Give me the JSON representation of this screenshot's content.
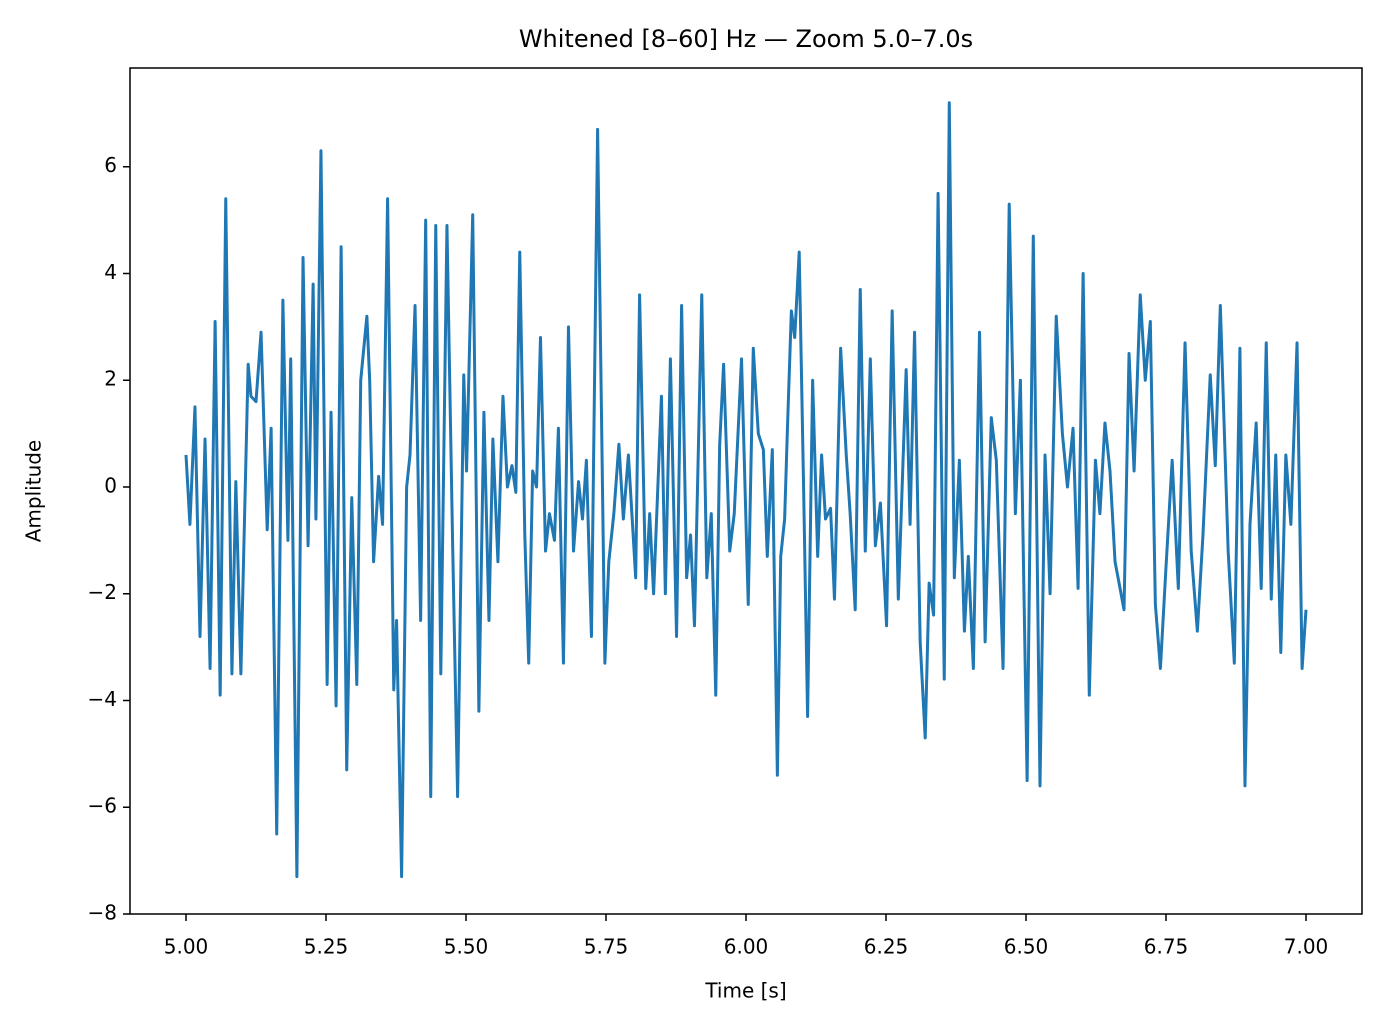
{
  "chart_data": {
    "type": "line",
    "title": "Whitened [8–60] Hz — Zoom 5.0–7.0s",
    "x_label": "Time [s]",
    "y_label": "Amplitude",
    "xlim": [
      4.9,
      7.1
    ],
    "ylim": [
      -8,
      7.85
    ],
    "grid": false,
    "xticks": [
      {
        "value": 5,
        "label": "5.00"
      },
      {
        "value": 5.25,
        "label": "5.25"
      },
      {
        "value": 5.5,
        "label": "5.50"
      },
      {
        "value": 5.75,
        "label": "5.75"
      },
      {
        "value": 6,
        "label": "6.00"
      },
      {
        "value": 6.25,
        "label": "6.25"
      },
      {
        "value": 6.5,
        "label": "6.50"
      },
      {
        "value": 6.75,
        "label": "6.75"
      },
      {
        "value": 7,
        "label": "7.00"
      }
    ],
    "yticks": [
      {
        "value": -8,
        "label": "−8"
      },
      {
        "value": -6,
        "label": "−6"
      },
      {
        "value": -4,
        "label": "−4"
      },
      {
        "value": -2,
        "label": "−2"
      },
      0,
      2,
      4,
      6
    ],
    "x": [
      5.0,
      5.007,
      5.016,
      5.025,
      5.034,
      5.043,
      5.052,
      5.061,
      5.071,
      5.082,
      5.089,
      5.098,
      5.111,
      5.116,
      5.125,
      5.134,
      5.145,
      5.152,
      5.162,
      5.173,
      5.182,
      5.187,
      5.198,
      5.209,
      5.218,
      5.227,
      5.232,
      5.241,
      5.252,
      5.259,
      5.268,
      5.277,
      5.287,
      5.296,
      5.305,
      5.312,
      5.323,
      5.328,
      5.335,
      5.344,
      5.351,
      5.36,
      5.371,
      5.376,
      5.385,
      5.394,
      5.4,
      5.409,
      5.419,
      5.428,
      5.437,
      5.446,
      5.455,
      5.466,
      5.476,
      5.485,
      5.496,
      5.501,
      5.512,
      5.523,
      5.532,
      5.541,
      5.548,
      5.557,
      5.566,
      5.574,
      5.582,
      5.589,
      5.596,
      5.605,
      5.612,
      5.619,
      5.626,
      5.633,
      5.642,
      5.649,
      5.658,
      5.665,
      5.674,
      5.683,
      5.692,
      5.701,
      5.708,
      5.715,
      5.724,
      5.735,
      5.748,
      5.755,
      5.764,
      5.773,
      5.781,
      5.79,
      5.803,
      5.81,
      5.821,
      5.828,
      5.835,
      5.849,
      5.856,
      5.865,
      5.876,
      5.885,
      5.894,
      5.901,
      5.908,
      5.921,
      5.93,
      5.938,
      5.946,
      5.953,
      5.96,
      5.971,
      5.979,
      5.992,
      6.004,
      6.013,
      6.022,
      6.031,
      6.038,
      6.047,
      6.056,
      6.062,
      6.069,
      6.074,
      6.081,
      6.087,
      6.095,
      6.103,
      6.11,
      6.119,
      6.128,
      6.135,
      6.142,
      6.151,
      6.158,
      6.169,
      6.179,
      6.186,
      6.195,
      6.204,
      6.213,
      6.222,
      6.231,
      6.24,
      6.251,
      6.261,
      6.272,
      6.286,
      6.293,
      6.301,
      6.311,
      6.32,
      6.327,
      6.335,
      6.343,
      6.354,
      6.363,
      6.372,
      6.381,
      6.39,
      6.397,
      6.406,
      6.417,
      6.427,
      6.438,
      6.447,
      6.459,
      6.47,
      6.481,
      6.49,
      6.502,
      6.513,
      6.525,
      6.534,
      6.543,
      6.554,
      6.565,
      6.574,
      6.584,
      6.593,
      6.602,
      6.613,
      6.624,
      6.632,
      6.641,
      6.65,
      6.659,
      6.668,
      6.675,
      6.684,
      6.693,
      6.704,
      6.713,
      6.722,
      6.731,
      6.74,
      6.75,
      6.761,
      6.772,
      6.784,
      6.795,
      6.806,
      6.816,
      6.829,
      6.838,
      6.847,
      6.861,
      6.872,
      6.882,
      6.891,
      6.9,
      6.911,
      6.92,
      6.929,
      6.938,
      6.946,
      6.955,
      6.964,
      6.973,
      6.984,
      6.993,
      7.0
    ],
    "series": [
      {
        "name": "Whitened",
        "color": "#1f77b4",
        "values": [
          0.6,
          -0.7,
          1.5,
          -2.8,
          0.9,
          -3.4,
          3.1,
          -3.9,
          5.4,
          -3.5,
          0.1,
          -3.5,
          2.3,
          1.7,
          1.6,
          2.9,
          -0.8,
          1.1,
          -6.5,
          3.5,
          -1.0,
          2.4,
          -7.3,
          4.3,
          -1.1,
          3.8,
          -0.6,
          6.3,
          -3.7,
          1.4,
          -4.1,
          4.5,
          -5.3,
          -0.2,
          -3.7,
          2.0,
          3.2,
          2.0,
          -1.4,
          0.2,
          -0.7,
          5.4,
          -3.8,
          -2.5,
          -7.3,
          0.0,
          0.6,
          3.4,
          -2.5,
          5.0,
          -5.8,
          4.9,
          -3.5,
          4.9,
          -1.0,
          -5.8,
          2.1,
          0.3,
          5.1,
          -4.2,
          1.4,
          -2.5,
          0.9,
          -1.4,
          1.7,
          0.0,
          0.4,
          -0.1,
          4.4,
          -0.9,
          -3.3,
          0.3,
          0.0,
          2.8,
          -1.2,
          -0.5,
          -1.0,
          1.1,
          -3.3,
          3.0,
          -1.2,
          0.1,
          -0.6,
          0.5,
          -2.8,
          6.7,
          -3.3,
          -1.4,
          -0.5,
          0.8,
          -0.6,
          0.6,
          -1.7,
          3.6,
          -1.9,
          -0.5,
          -2.0,
          1.7,
          -2.0,
          2.4,
          -2.8,
          3.4,
          -1.7,
          -0.9,
          -2.6,
          3.6,
          -1.7,
          -0.5,
          -3.9,
          0.8,
          2.3,
          -1.2,
          -0.5,
          2.4,
          -2.2,
          2.6,
          1.0,
          0.7,
          -1.3,
          0.7,
          -5.4,
          -1.3,
          -0.6,
          1.1,
          3.3,
          2.8,
          4.4,
          -0.1,
          -4.3,
          2.0,
          -1.3,
          0.6,
          -0.6,
          -0.4,
          -2.1,
          2.6,
          0.6,
          -0.5,
          -2.3,
          3.7,
          -1.2,
          2.4,
          -1.1,
          -0.3,
          -2.6,
          3.3,
          -2.1,
          2.2,
          -0.7,
          2.9,
          -2.9,
          -4.7,
          -1.8,
          -2.4,
          5.5,
          -3.6,
          7.2,
          -1.7,
          0.5,
          -2.7,
          -1.3,
          -3.4,
          2.9,
          -2.9,
          1.3,
          0.5,
          -3.4,
          5.3,
          -0.5,
          2.0,
          -5.5,
          4.7,
          -5.6,
          0.6,
          -2.0,
          3.2,
          1.0,
          0.0,
          1.1,
          -1.9,
          4.0,
          -3.9,
          0.5,
          -0.5,
          1.2,
          0.3,
          -1.4,
          -1.9,
          -2.3,
          2.5,
          0.3,
          3.6,
          2.0,
          3.1,
          -2.2,
          -3.4,
          -1.5,
          0.5,
          -1.9,
          2.7,
          -1.2,
          -2.7,
          -0.9,
          2.1,
          0.4,
          3.4,
          -1.2,
          -3.3,
          2.6,
          -5.6,
          -0.7,
          1.2,
          -1.9,
          2.7,
          -2.1,
          0.6,
          -3.1,
          0.6,
          -0.7,
          2.7,
          -3.4,
          -2.3
        ]
      }
    ]
  }
}
